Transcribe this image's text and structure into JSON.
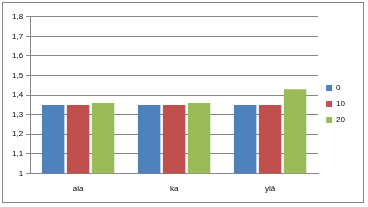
{
  "chart_data": {
    "type": "bar",
    "categories": [
      "ala",
      "ka",
      "ylä"
    ],
    "series": [
      {
        "name": "0",
        "color": "#4f81bd",
        "values": [
          1.35,
          1.35,
          1.35
        ]
      },
      {
        "name": "10",
        "color": "#c0504d",
        "values": [
          1.35,
          1.35,
          1.35
        ]
      },
      {
        "name": "20",
        "color": "#9bbb59",
        "values": [
          1.36,
          1.36,
          1.43
        ]
      }
    ],
    "ylim": [
      1,
      1.8
    ],
    "yticks": [
      1,
      {
        "value": 1.1,
        "label": "1,1"
      },
      {
        "value": 1.2,
        "label": "1,2"
      },
      {
        "value": 1.3,
        "label": "1,3"
      },
      {
        "value": 1.4,
        "label": "1,4"
      },
      {
        "value": 1.5,
        "label": "1,5"
      },
      {
        "value": 1.6,
        "label": "1,6"
      },
      {
        "value": 1.7,
        "label": "1,7"
      },
      {
        "value": 1.8,
        "label": "1,8"
      }
    ],
    "grid": true,
    "legend": "right"
  }
}
